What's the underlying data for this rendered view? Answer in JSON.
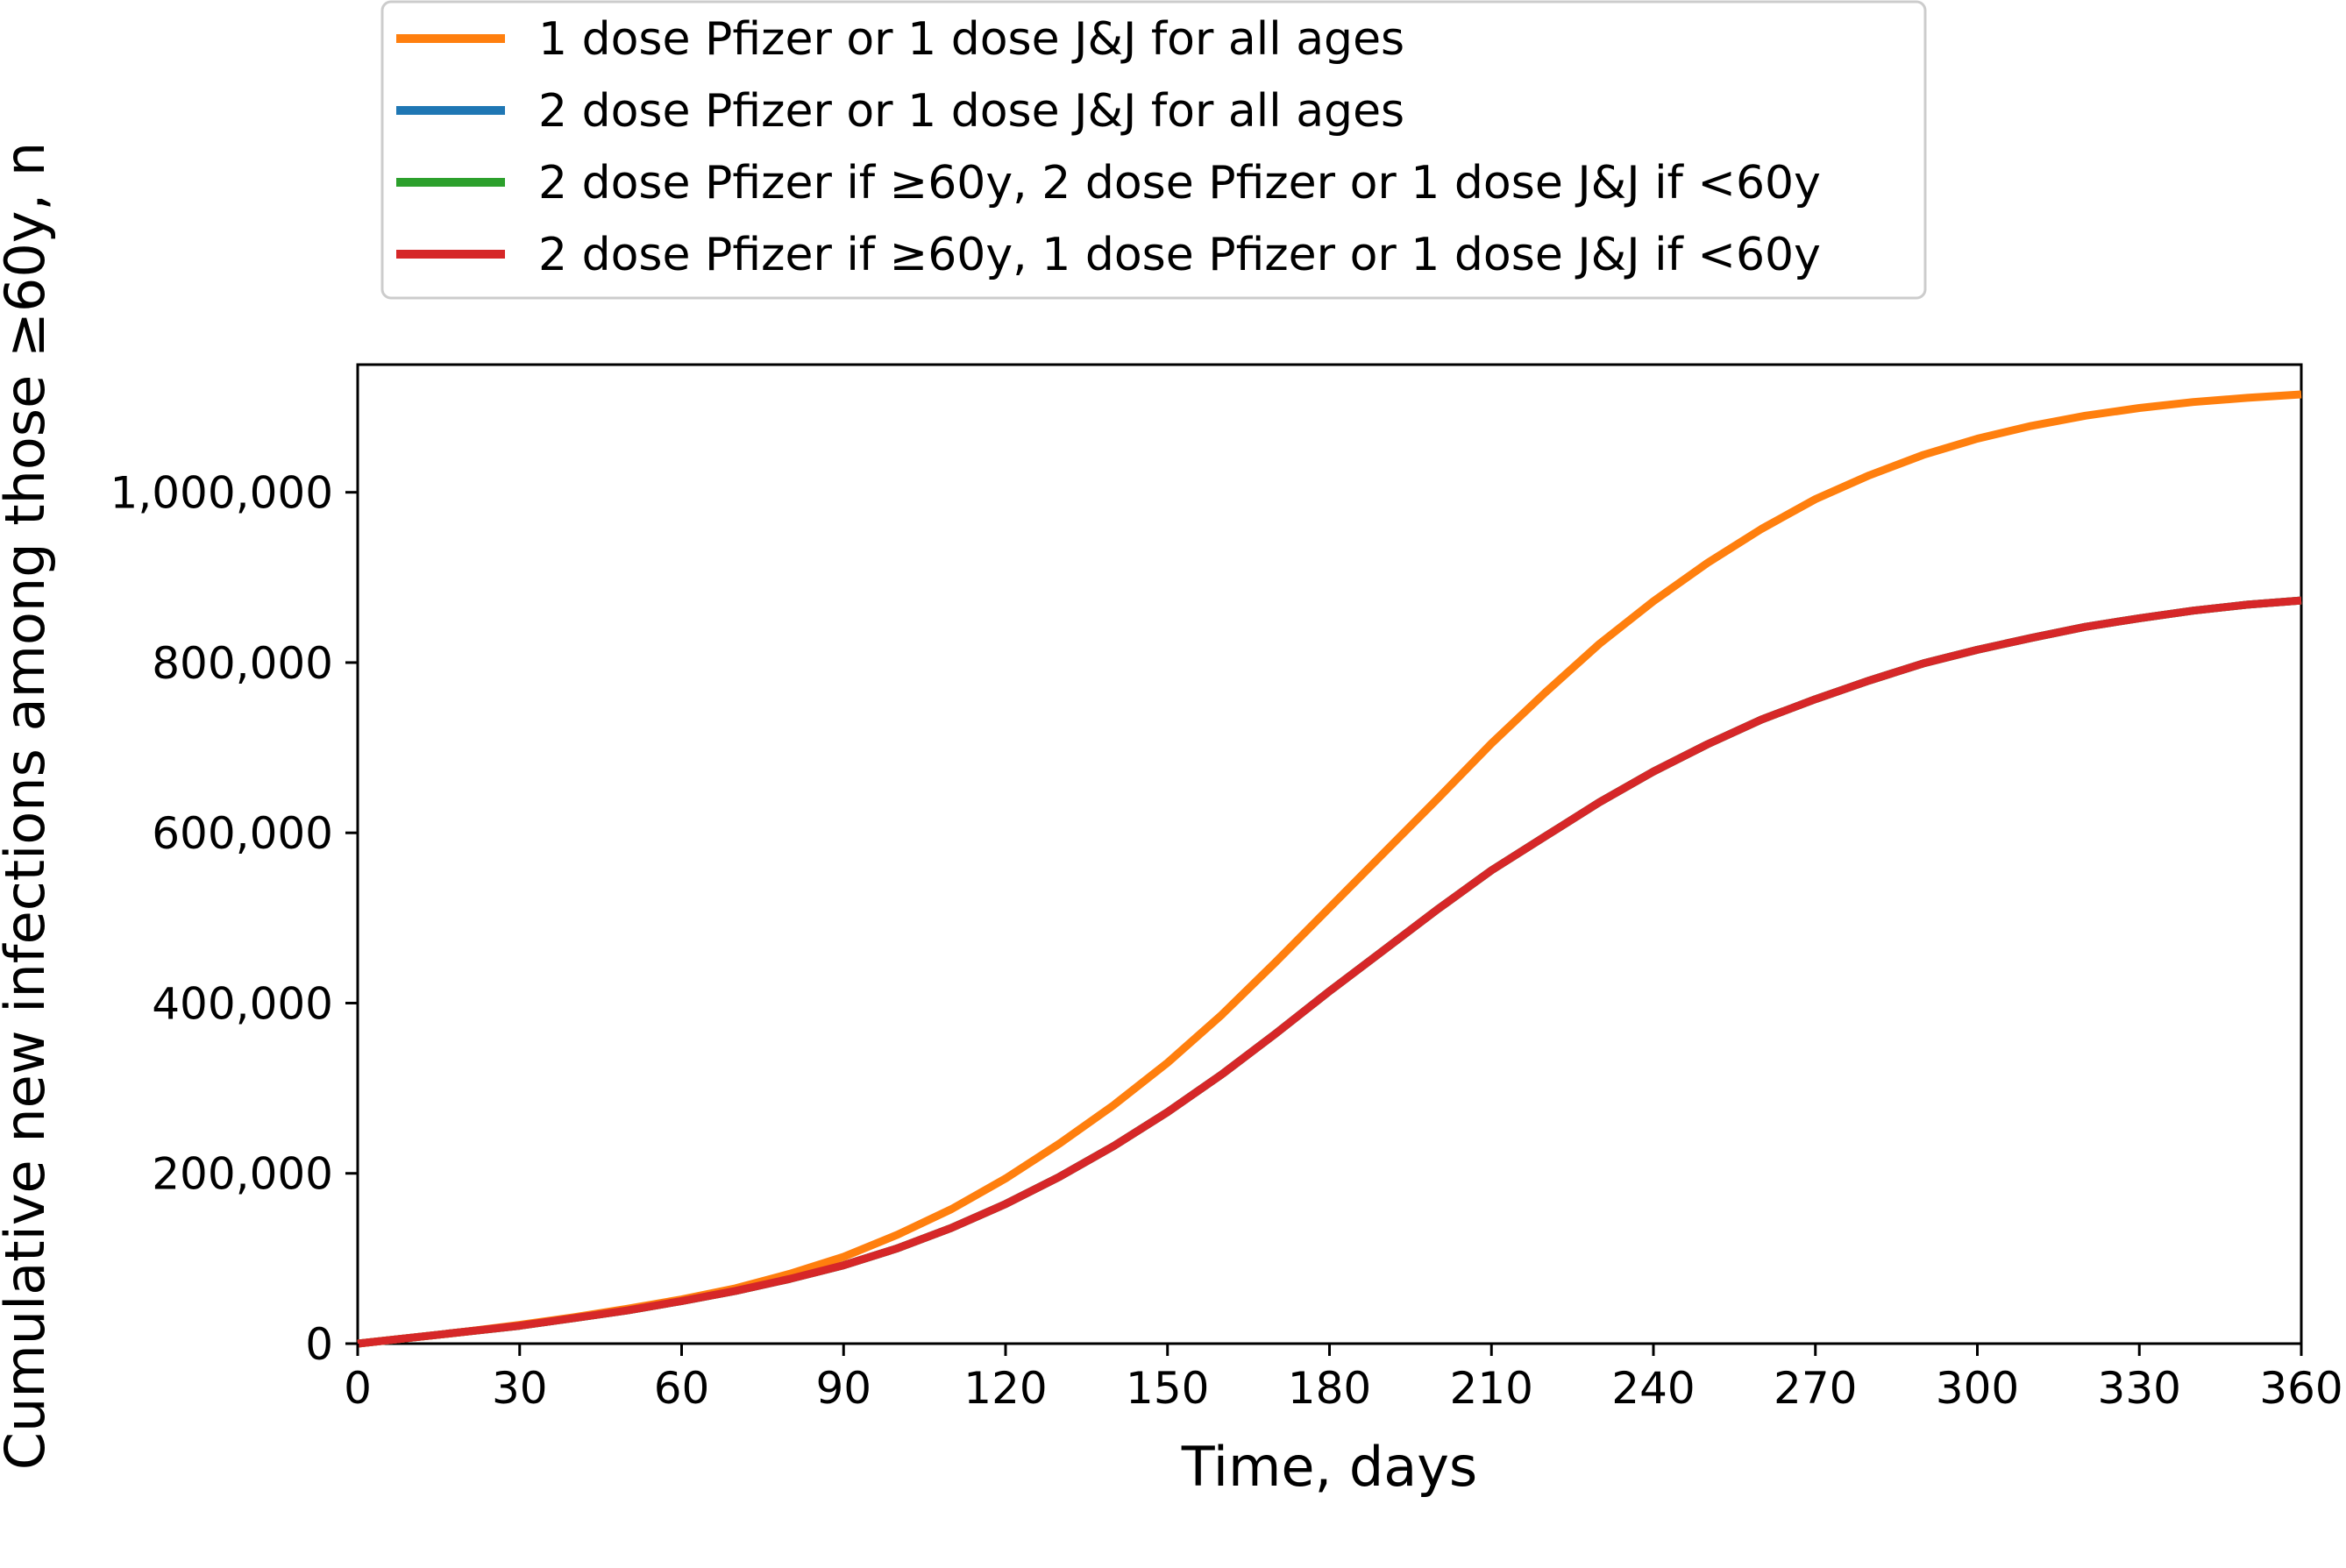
{
  "chart_data": {
    "type": "line",
    "title": "",
    "xlabel": "Time, days",
    "ylabel": "Cumulative new infections among those ≥60y, n",
    "xlim": [
      0,
      360
    ],
    "ylim": [
      0,
      1150000
    ],
    "xticks": [
      0,
      30,
      60,
      90,
      120,
      150,
      180,
      210,
      240,
      270,
      300,
      330,
      360
    ],
    "xtick_labels": [
      "0",
      "30",
      "60",
      "90",
      "120",
      "150",
      "180",
      "210",
      "240",
      "270",
      "300",
      "330",
      "360"
    ],
    "yticks": [
      0,
      200000,
      400000,
      600000,
      800000,
      1000000
    ],
    "ytick_labels": [
      "0",
      "200,000",
      "400,000",
      "600,000",
      "800,000",
      "1,000,000"
    ],
    "grid": false,
    "legend_position": "top-center, above plot",
    "x": [
      0,
      10,
      20,
      30,
      40,
      50,
      60,
      70,
      80,
      90,
      100,
      110,
      120,
      130,
      140,
      150,
      160,
      170,
      180,
      190,
      200,
      210,
      220,
      230,
      240,
      250,
      260,
      270,
      280,
      290,
      300,
      310,
      320,
      330,
      340,
      350,
      360
    ],
    "series": [
      {
        "name": "2 dose Pfizer or 1 dose J&J for all ages",
        "color": "#1f77b4",
        "values": [
          0,
          7000,
          14000,
          21000,
          30000,
          39000,
          50000,
          62000,
          76000,
          92000,
          112000,
          136000,
          164000,
          196000,
          232000,
          272000,
          316000,
          364000,
          414000,
          462000,
          510000,
          556000,
          596000,
          636000,
          672000,
          704000,
          733000,
          757000,
          779000,
          799000,
          815000,
          829000,
          842000,
          852000,
          861000,
          868000,
          873000
        ]
      },
      {
        "name": "2 dose Pfizer if ≥60y, 2 dose Pfizer or 1 dose J&J if <60y",
        "color": "#2ca02c",
        "values": [
          0,
          7000,
          14000,
          21000,
          30000,
          39000,
          50000,
          62000,
          76000,
          92000,
          112000,
          136000,
          164000,
          196000,
          232000,
          272000,
          316000,
          364000,
          414000,
          462000,
          510000,
          556000,
          596000,
          636000,
          672000,
          704000,
          733000,
          757000,
          779000,
          799000,
          815000,
          829000,
          842000,
          852000,
          861000,
          868000,
          873000
        ]
      },
      {
        "name": "1 dose Pfizer or 1 dose J&J for all ages",
        "color": "#ff7f0e",
        "values": [
          0,
          7000,
          14000,
          22000,
          31000,
          41000,
          52000,
          65000,
          82000,
          102000,
          128000,
          158000,
          194000,
          235000,
          280000,
          330000,
          386000,
          448000,
          512000,
          576000,
          640000,
          705000,
          765000,
          822000,
          872000,
          917000,
          957000,
          992000,
          1020000,
          1044000,
          1063000,
          1078000,
          1090000,
          1099000,
          1106000,
          1111000,
          1115000
        ]
      },
      {
        "name": "2 dose Pfizer if ≥60y, 1 dose Pfizer or 1 dose J&J if <60y",
        "color": "#d62728",
        "values": [
          0,
          7000,
          14000,
          21000,
          30000,
          39000,
          50000,
          62000,
          76000,
          92000,
          112000,
          136000,
          164000,
          196000,
          232000,
          272000,
          316000,
          364000,
          414000,
          462000,
          510000,
          556000,
          596000,
          636000,
          672000,
          704000,
          733000,
          757000,
          779000,
          799000,
          815000,
          829000,
          842000,
          852000,
          861000,
          868000,
          873000
        ]
      }
    ],
    "legend_order": [
      2,
      0,
      1,
      3
    ]
  }
}
